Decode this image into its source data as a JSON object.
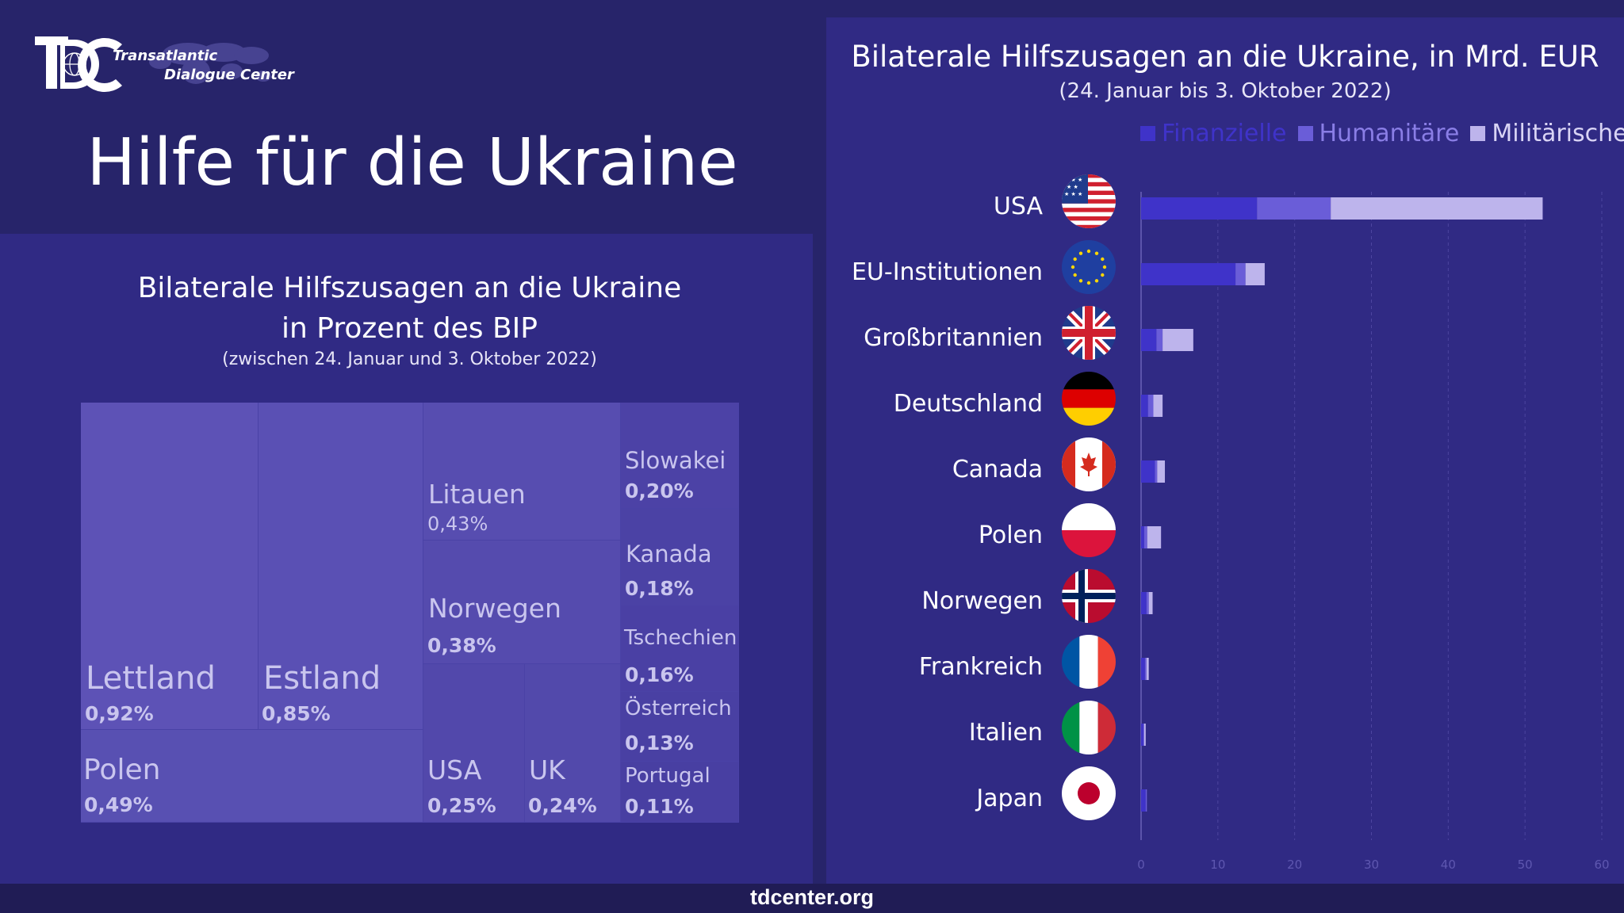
{
  "logo": {
    "line1": "Transatlantic",
    "line2": "Dialogue Center"
  },
  "main_title": "Hilfe für die Ukraine",
  "footer": "tdcenter.org",
  "colors": {
    "background": "#27246a",
    "panel": "#302a84",
    "finanzielle": "#3f33c9",
    "humanitaere": "#6a5dd8",
    "militaerische": "#bdb4ec",
    "treemap_cell": "#5a50b4"
  },
  "chart_data": [
    {
      "type": "treemap",
      "title_line1": "Bilaterale Hilfszusagen an die Ukraine",
      "title_line2": "in Prozent des BIP",
      "subtitle": "(zwischen 24. Januar und 3. Oktober 2022)",
      "items": [
        {
          "name": "Lettland",
          "value_label": "0,92%",
          "value": 0.92
        },
        {
          "name": "Estland",
          "value_label": "0,85%",
          "value": 0.85
        },
        {
          "name": "Polen",
          "value_label": "0,49%",
          "value": 0.49
        },
        {
          "name": "Litauen",
          "value_label": "0,43%",
          "value": 0.43
        },
        {
          "name": "Norwegen",
          "value_label": "0,38%",
          "value": 0.38
        },
        {
          "name": "USA",
          "value_label": "0,25%",
          "value": 0.25
        },
        {
          "name": "UK",
          "value_label": "0,24%",
          "value": 0.24
        },
        {
          "name": "Slowakei",
          "value_label": "0,20%",
          "value": 0.2
        },
        {
          "name": "Kanada",
          "value_label": "0,18%",
          "value": 0.18
        },
        {
          "name": "Tschechien",
          "value_label": "0,16%",
          "value": 0.16
        },
        {
          "name": "Österreich",
          "value_label": "0,13%",
          "value": 0.13
        },
        {
          "name": "Portugal",
          "value_label": "0,11%",
          "value": 0.11
        }
      ]
    },
    {
      "type": "bar",
      "orientation": "horizontal",
      "stacked": true,
      "title": "Bilaterale Hilfszusagen an die Ukraine, in Mrd. EUR",
      "subtitle": "(24. Januar bis 3. Oktober 2022)",
      "legend_position": "top-right",
      "categories": [
        "USA",
        "EU-Institutionen",
        "Großbritannien",
        "Deutschland",
        "Canada",
        "Polen",
        "Norwegen",
        "Frankreich",
        "Italien",
        "Japan"
      ],
      "flags": [
        "us-flag-icon",
        "eu-flag-icon",
        "uk-flag-icon",
        "de-flag-icon",
        "ca-flag-icon",
        "pl-flag-icon",
        "no-flag-icon",
        "fr-flag-icon",
        "it-flag-icon",
        "jp-flag-icon"
      ],
      "series": [
        {
          "name": "Finanzielle",
          "values": [
            15.1,
            12.3,
            2.0,
            0.9,
            1.8,
            0.4,
            0.7,
            0.5,
            0.3,
            0.6
          ]
        },
        {
          "name": "Humanitäre",
          "values": [
            9.6,
            1.3,
            0.8,
            0.7,
            0.3,
            0.4,
            0.3,
            0.2,
            0.1,
            0.1
          ]
        },
        {
          "name": "Militärische",
          "values": [
            27.6,
            2.5,
            4.0,
            1.2,
            1.0,
            1.8,
            0.5,
            0.3,
            0.2,
            0.0
          ]
        }
      ],
      "xlim": [
        0,
        60
      ],
      "xticks": [
        0,
        10,
        20,
        30,
        40,
        50,
        60
      ],
      "grid": true
    }
  ]
}
